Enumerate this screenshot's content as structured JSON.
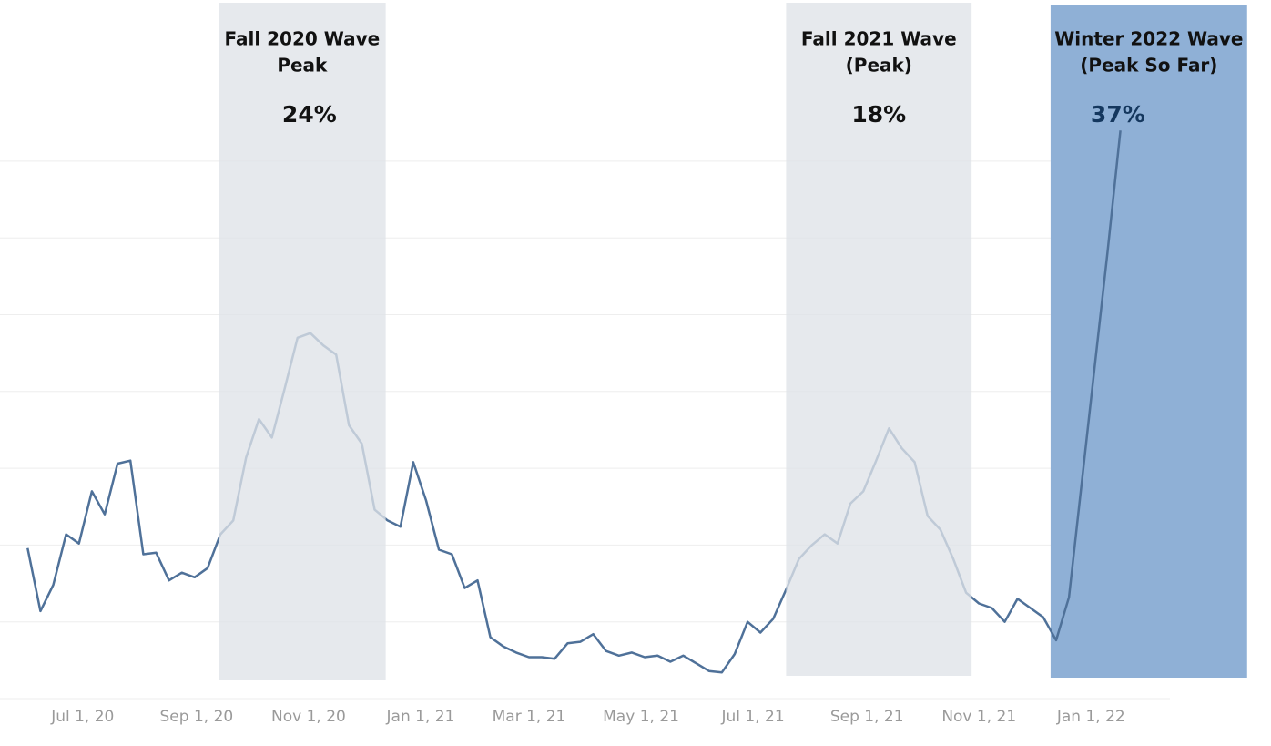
{
  "chart_data": {
    "type": "line",
    "x": [
      "2020-06-01",
      "2020-06-08",
      "2020-06-15",
      "2020-06-22",
      "2020-06-29",
      "2020-07-06",
      "2020-07-13",
      "2020-07-20",
      "2020-07-27",
      "2020-08-03",
      "2020-08-10",
      "2020-08-17",
      "2020-08-24",
      "2020-08-31",
      "2020-09-07",
      "2020-09-14",
      "2020-09-21",
      "2020-09-28",
      "2020-10-05",
      "2020-10-12",
      "2020-10-19",
      "2020-10-26",
      "2020-11-02",
      "2020-11-09",
      "2020-11-16",
      "2020-11-23",
      "2020-11-30",
      "2020-12-07",
      "2020-12-14",
      "2020-12-21",
      "2020-12-28",
      "2021-01-04",
      "2021-01-11",
      "2021-01-18",
      "2021-01-25",
      "2021-02-01",
      "2021-02-08",
      "2021-02-15",
      "2021-02-22",
      "2021-03-01",
      "2021-03-08",
      "2021-03-15",
      "2021-03-22",
      "2021-03-29",
      "2021-04-05",
      "2021-04-12",
      "2021-04-19",
      "2021-04-26",
      "2021-05-03",
      "2021-05-10",
      "2021-05-17",
      "2021-05-24",
      "2021-05-31",
      "2021-06-07",
      "2021-06-14",
      "2021-06-21",
      "2021-06-28",
      "2021-07-05",
      "2021-07-12",
      "2021-07-19",
      "2021-07-26",
      "2021-08-02",
      "2021-08-09",
      "2021-08-16",
      "2021-08-23",
      "2021-08-30",
      "2021-09-06",
      "2021-09-13",
      "2021-09-20",
      "2021-09-27",
      "2021-10-04",
      "2021-10-11",
      "2021-10-18",
      "2021-10-25",
      "2021-11-01",
      "2021-11-08",
      "2021-11-15",
      "2021-11-22",
      "2021-11-29",
      "2021-12-06",
      "2021-12-13",
      "2021-12-20",
      "2021-12-27",
      "2022-01-03",
      "2022-01-10",
      "2022-01-17"
    ],
    "series": [
      {
        "color": "#4f7199",
        "values": [
          9.8,
          5.7,
          7.4,
          10.7,
          10.1,
          13.5,
          12.0,
          15.3,
          15.5,
          9.4,
          9.5,
          7.7,
          8.2,
          7.9,
          8.5,
          10.7,
          11.6,
          15.7,
          18.2,
          17.0,
          20.2,
          23.5,
          23.8,
          23.0,
          22.4,
          17.8,
          16.6,
          12.3,
          11.6,
          11.2,
          15.4,
          12.9,
          9.7,
          9.4,
          7.2,
          7.7,
          4.0,
          3.4,
          3.0,
          2.7,
          2.7,
          2.6,
          3.6,
          3.7,
          4.2,
          3.1,
          2.8,
          3.0,
          2.7,
          2.8,
          2.4,
          2.8,
          2.3,
          1.8,
          1.7,
          2.9,
          5.0,
          4.3,
          5.2,
          7.1,
          9.1,
          10.0,
          10.7,
          10.1,
          12.7,
          13.5,
          15.5,
          17.6,
          16.3,
          15.4,
          11.9,
          11.0,
          9.1,
          6.9,
          6.2,
          5.9,
          5.0,
          6.5,
          5.9,
          5.3,
          3.8,
          6.6,
          14.1,
          21.6,
          29.1,
          37
        ]
      }
    ],
    "xlim": [
      "2020-05-17",
      "2022-04-09"
    ],
    "xticks": [
      {
        "value": "2020-07-01",
        "label": "Jul 1, 20"
      },
      {
        "value": "2020-09-01",
        "label": "Sep 1, 20"
      },
      {
        "value": "2020-11-01",
        "label": "Nov 1, 20"
      },
      {
        "value": "2021-01-01",
        "label": "Jan 1, 21"
      },
      {
        "value": "2021-03-01",
        "label": "Mar 1, 21"
      },
      {
        "value": "2021-05-01",
        "label": "May 1, 21"
      },
      {
        "value": "2021-07-01",
        "label": "Jul 1, 21"
      },
      {
        "value": "2021-09-01",
        "label": "Sep 1, 21"
      },
      {
        "value": "2021-11-01",
        "label": "Nov 1, 21"
      },
      {
        "value": "2022-01-01",
        "label": "Jan 1, 22"
      }
    ],
    "ylim": [
      0,
      40
    ],
    "yticks": [
      0,
      5,
      10,
      15,
      20,
      25,
      30,
      35
    ],
    "grid": true,
    "bands": [
      {
        "start": "2020-09-13",
        "end": "2020-12-13",
        "color": "#dfe3e8",
        "title": [
          "Fall 2020 Wave",
          "Peak"
        ],
        "label": "24%",
        "value": 24
      },
      {
        "start": "2021-07-19",
        "end": "2021-10-28",
        "color": "#dfe3e8",
        "title": [
          "Fall 2021 Wave",
          "(Peak)"
        ],
        "label": "18%",
        "value": 18
      },
      {
        "start": "2021-12-10",
        "end": "2022-03-27",
        "color": "#8fb0d6",
        "title": [
          "Winter 2022 Wave",
          "(Peak So Far)"
        ],
        "label": "37%",
        "value": 37
      }
    ]
  }
}
